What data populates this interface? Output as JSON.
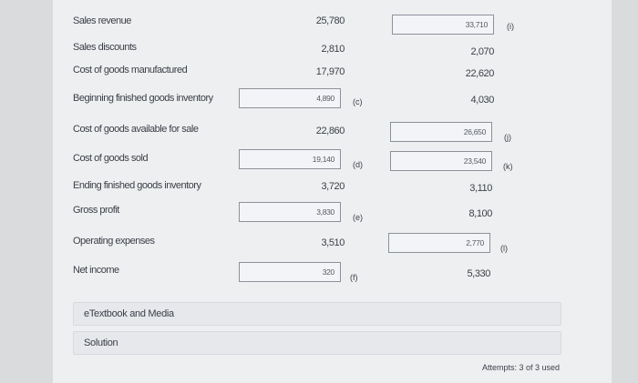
{
  "rows": {
    "sales_revenue": {
      "label": "Sales revenue",
      "col1": "25,780",
      "col2": "33,710",
      "tag2": "(i)"
    },
    "sales_discounts": {
      "label": "Sales discounts",
      "col1": "2,810",
      "col2": "2,070"
    },
    "cogm": {
      "label": "Cost of goods manufactured",
      "col1": "17,970",
      "col2": "22,620"
    },
    "beginning_fg": {
      "label": "Beginning finished goods inventory",
      "col1": "4,890",
      "tag1": "(c)",
      "col2": "4,030"
    },
    "cogas": {
      "label": "Cost of goods available for sale",
      "col1": "22,860",
      "col2": "26,650",
      "tag2": "(j)"
    },
    "cogs": {
      "label": "Cost of goods sold",
      "col1": "19,140",
      "tag1": "(d)",
      "col2": "23,540",
      "tag2": "(k)"
    },
    "ending_fg": {
      "label": "Ending finished goods inventory",
      "col1": "3,720",
      "col2": "3,110"
    },
    "gross_profit": {
      "label": "Gross profit",
      "col1": "3,830",
      "tag1": "(e)",
      "col2": "8,100"
    },
    "operating_exp": {
      "label": "Operating expenses",
      "col1": "3,510",
      "col2": "2,770",
      "tag2": "(l)"
    },
    "net_income": {
      "label": "Net income",
      "col1": "320",
      "tag1": "(f)",
      "col2": "5,330"
    }
  },
  "links": {
    "etextbook": "eTextbook and Media",
    "solution": "Solution"
  },
  "attempts": "Attempts: 3 of 3 used"
}
